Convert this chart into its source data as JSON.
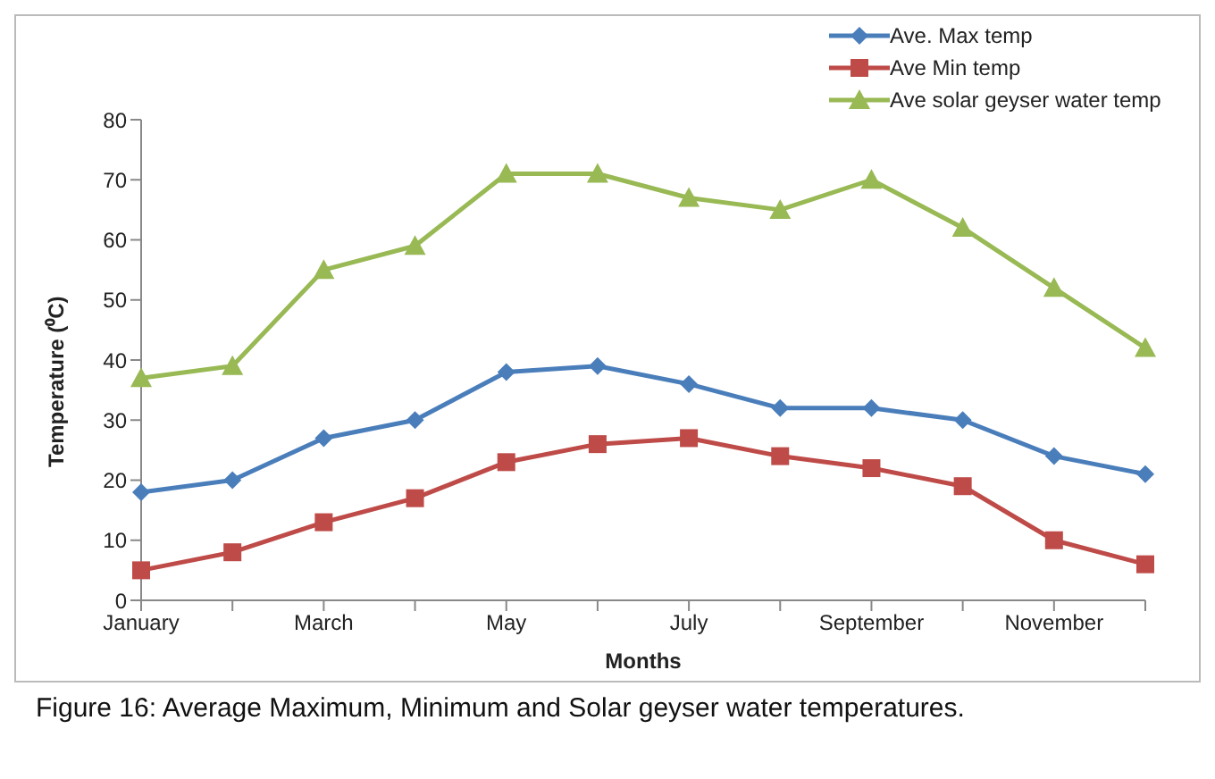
{
  "chart_data": {
    "type": "line",
    "xlabel": "Months",
    "ylabel": "Temperature (⁰C)",
    "categories": [
      "January",
      null,
      "March",
      null,
      "May",
      null,
      "July",
      null,
      "September",
      null,
      "November",
      null
    ],
    "series": [
      {
        "name": "Ave. Max temp",
        "color": "#4a7ebb",
        "marker": "diamond",
        "values": [
          18,
          20,
          27,
          30,
          38,
          39,
          36,
          32,
          32,
          30,
          24,
          21
        ]
      },
      {
        "name": "Ave Min temp",
        "color": "#be4b48",
        "marker": "square",
        "values": [
          5,
          8,
          13,
          17,
          23,
          26,
          27,
          24,
          22,
          19,
          10,
          6
        ]
      },
      {
        "name": "Ave solar geyser water temp",
        "color": "#98b954",
        "marker": "triangle",
        "values": [
          37,
          39,
          55,
          59,
          71,
          71,
          67,
          65,
          70,
          62,
          52,
          42
        ]
      }
    ],
    "ylim": [
      0,
      80
    ],
    "yticks": [
      0,
      10,
      20,
      30,
      40,
      50,
      60,
      70,
      80
    ],
    "grid": false,
    "legend": "top right",
    "annotations": [
      "Figure 16: Average Maximum, Minimum and Solar geyser water temperatures."
    ]
  }
}
